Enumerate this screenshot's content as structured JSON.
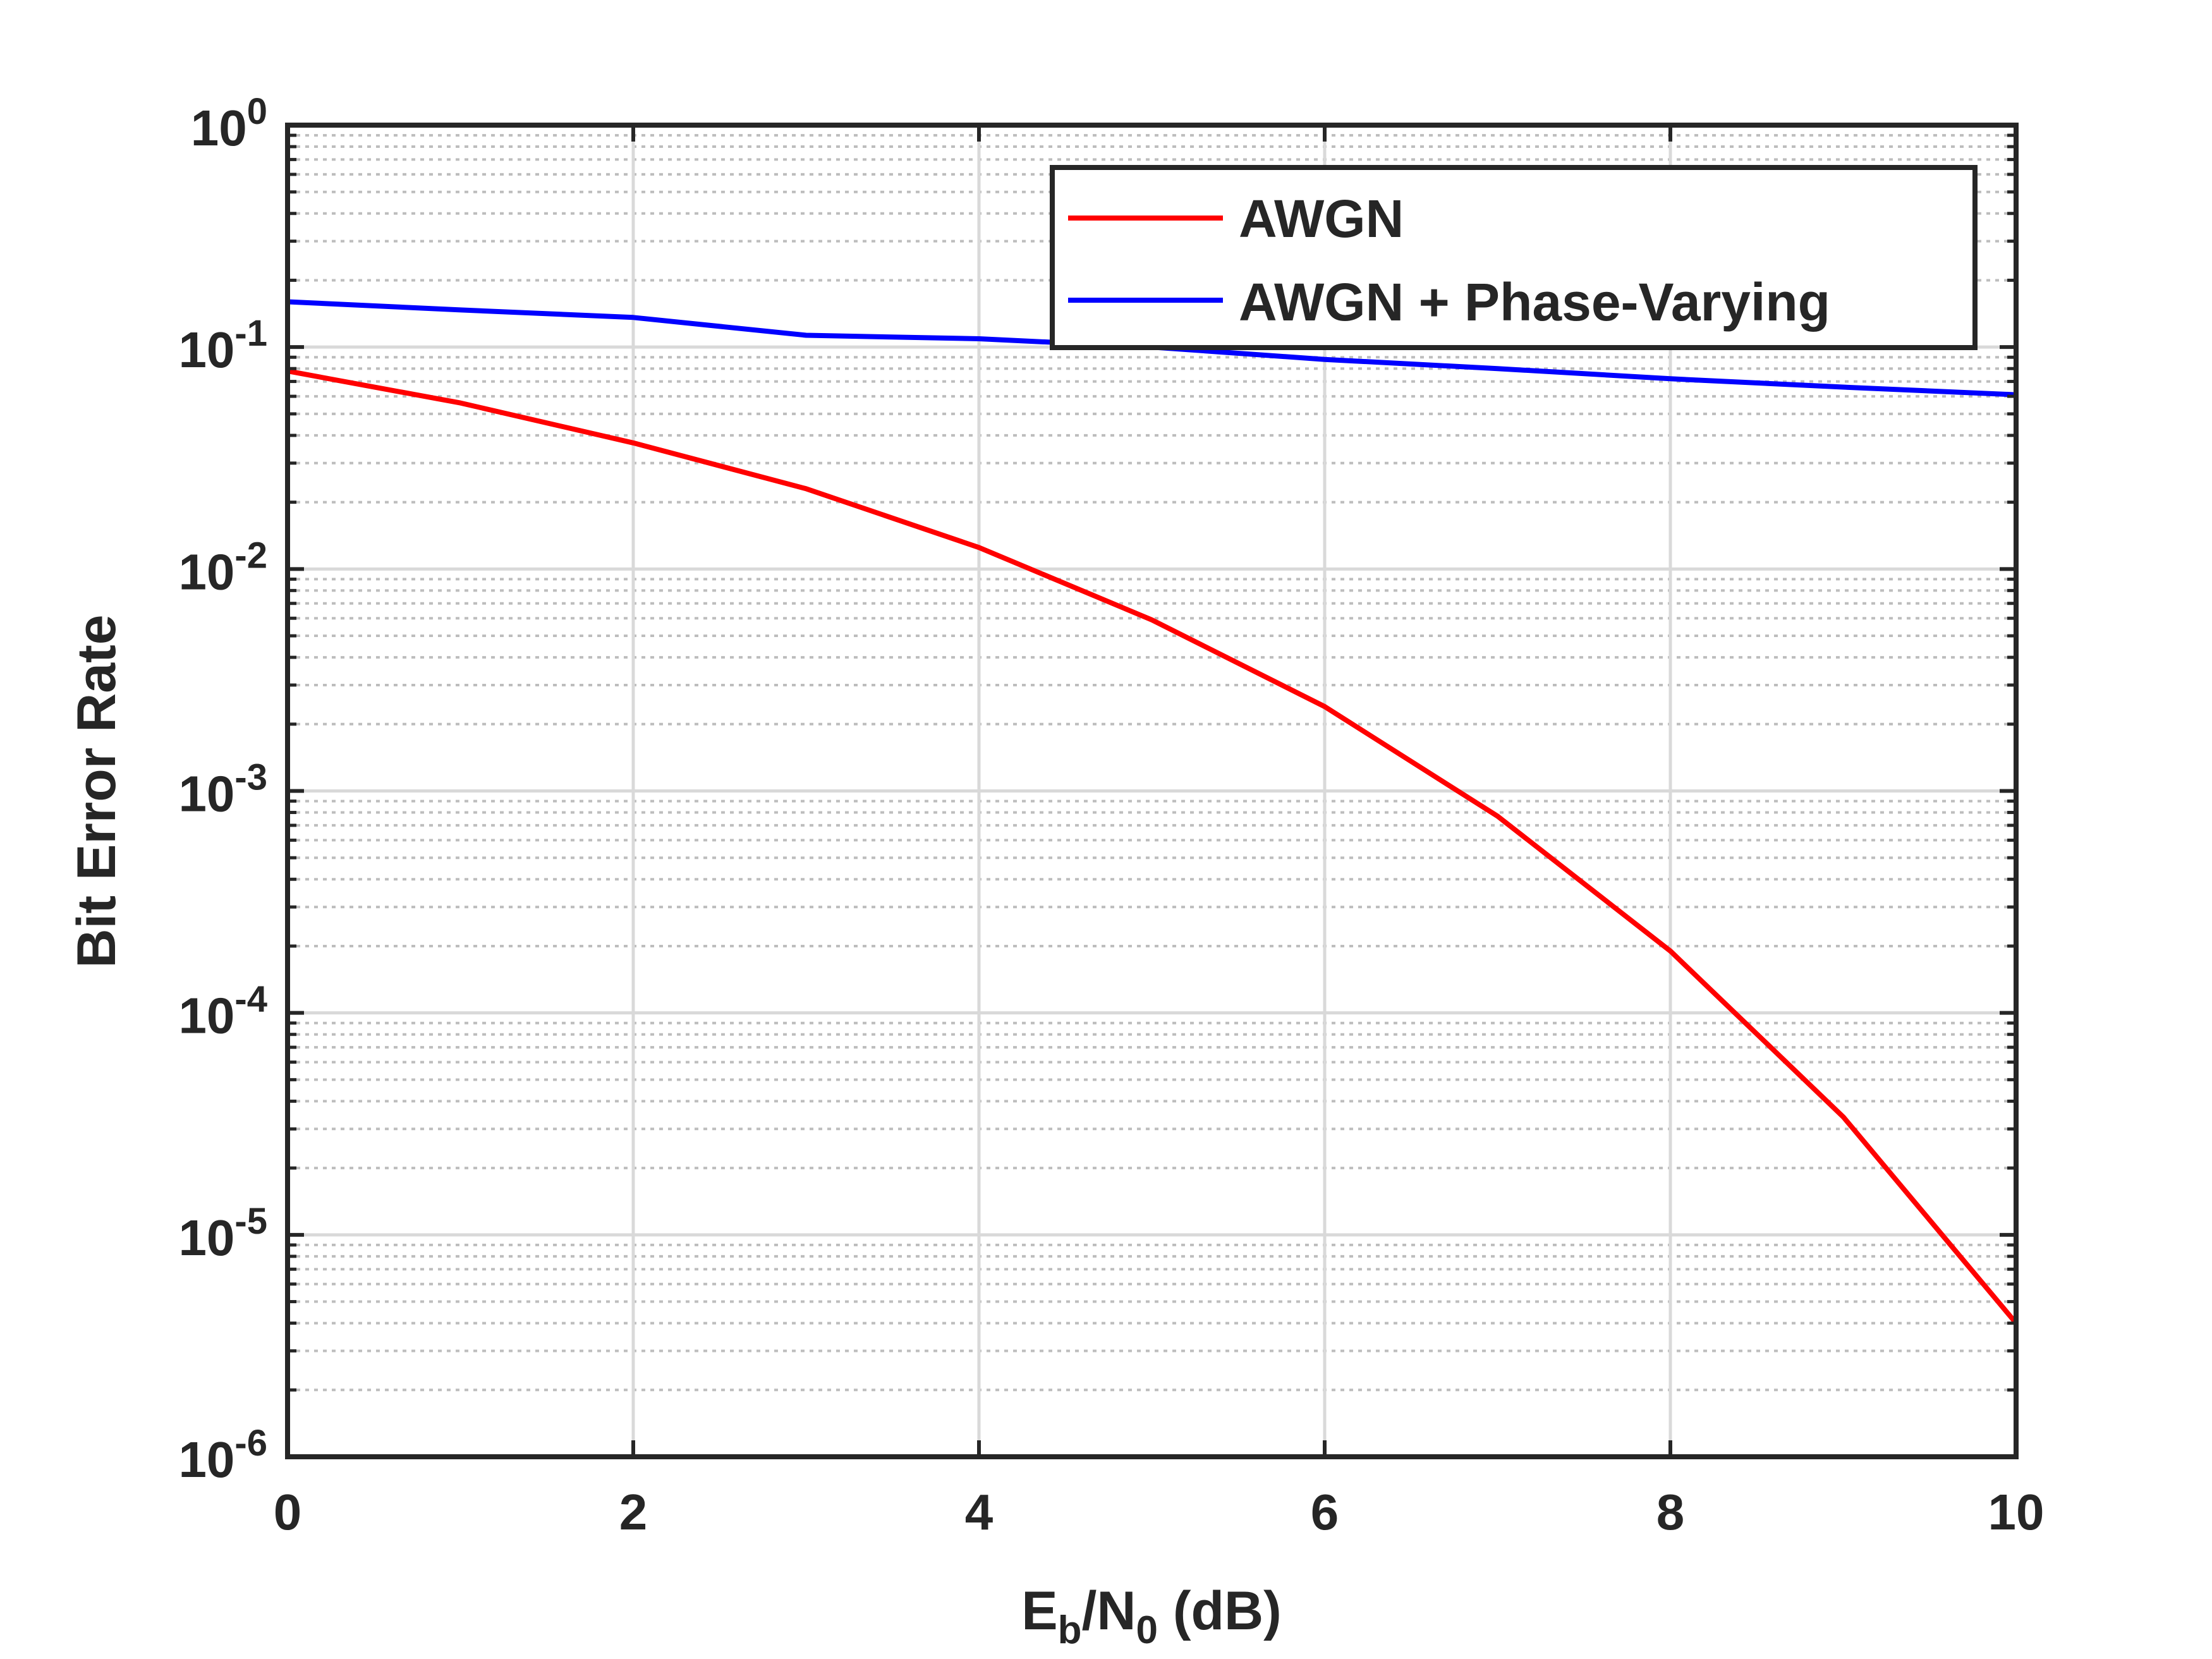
{
  "chart_data": {
    "type": "line",
    "xlabel": "E_b/N_0 (dB)",
    "ylabel": "Bit Error Rate",
    "xlim": [
      0,
      10
    ],
    "ylim": [
      1e-06,
      1
    ],
    "yscale": "log",
    "grid": true,
    "minor_grid": true,
    "legend_position": "top-right",
    "xticks": [
      0,
      2,
      4,
      6,
      8,
      10
    ],
    "xtick_labels": [
      "0",
      "2",
      "4",
      "6",
      "8",
      "10"
    ],
    "yticks": [
      1e-06,
      1e-05,
      0.0001,
      0.001,
      0.01,
      0.1,
      1
    ],
    "ytick_labels": [
      {
        "base": "10",
        "exp": "-6"
      },
      {
        "base": "10",
        "exp": "-5"
      },
      {
        "base": "10",
        "exp": "-4"
      },
      {
        "base": "10",
        "exp": "-3"
      },
      {
        "base": "10",
        "exp": "-2"
      },
      {
        "base": "10",
        "exp": "-1"
      },
      {
        "base": "10",
        "exp": "0"
      }
    ],
    "x": [
      0,
      1,
      2,
      3,
      4,
      5,
      6,
      7,
      8,
      9,
      10
    ],
    "series": [
      {
        "name": "AWGN",
        "color": "#ff0000",
        "values": [
          0.078,
          0.056,
          0.037,
          0.023,
          0.0125,
          0.0059,
          0.0024,
          0.00077,
          0.00019,
          3.4e-05,
          4e-06
        ]
      },
      {
        "name": "AWGN + Phase-Varying",
        "color": "#0000ff",
        "values": [
          0.16,
          0.147,
          0.136,
          0.113,
          0.109,
          0.1,
          0.088,
          0.08,
          0.072,
          0.066,
          0.061
        ]
      }
    ]
  }
}
